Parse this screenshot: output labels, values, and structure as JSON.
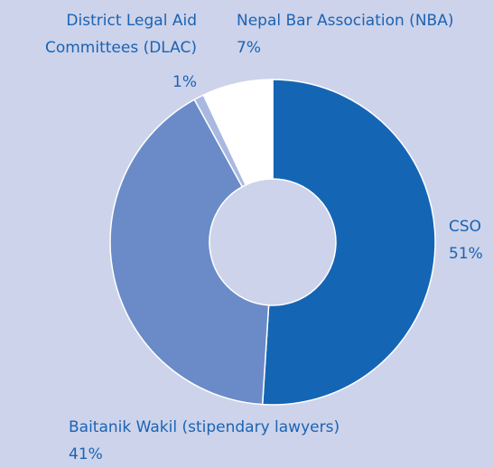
{
  "chart_data": {
    "type": "donut",
    "categories": [
      "CSO",
      "Baitanik Wakil (stipendary lawyers)",
      "District Legal Aid Committees (DLAC)",
      "Nepal Bar Association (NBA)"
    ],
    "values": [
      51,
      41,
      1,
      7
    ],
    "value_labels": [
      "51%",
      "41%",
      "1%",
      "7%"
    ],
    "colors": [
      "#1565b5",
      "#6a8bc7",
      "#a9b8e0",
      "#ffffff"
    ]
  }
}
